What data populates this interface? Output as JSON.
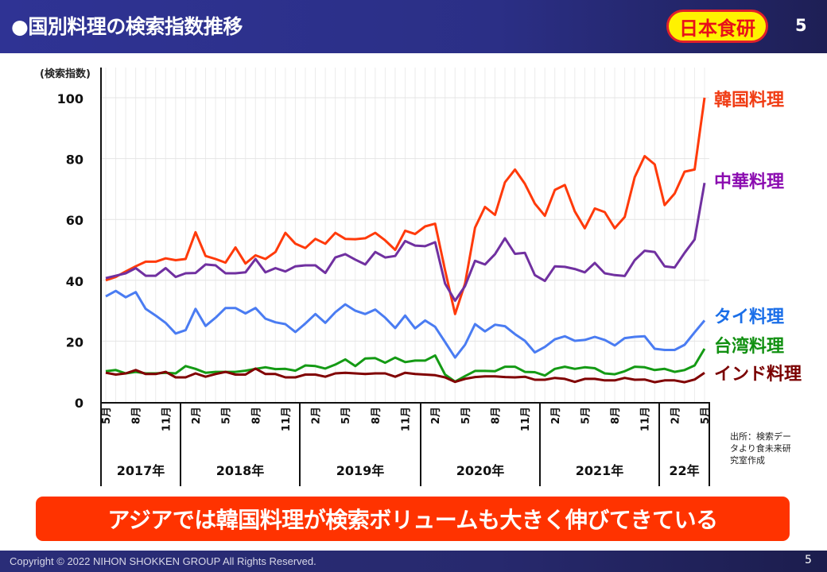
{
  "header": {
    "title": "●国別料理の検索指数推移",
    "logo_text": "日本食研",
    "page_number": "5"
  },
  "chart_data": {
    "type": "line",
    "ylabel": "(検索指数)",
    "ylim": [
      0,
      100
    ],
    "yticks": [
      "0",
      "20",
      "40",
      "60",
      "80",
      "100"
    ],
    "grid": true,
    "x_start": "2017-05",
    "x_end": "2022-05",
    "month_tick_labels": [
      "5月",
      "8月",
      "11月",
      "2月",
      "5月",
      "8月",
      "11月",
      "2月",
      "5月",
      "8月",
      "11月",
      "2月",
      "5月",
      "8月",
      "11月",
      "2月",
      "5月",
      "8月",
      "11月",
      "2月",
      "5月"
    ],
    "year_labels": [
      "2017年",
      "2018年",
      "2019年",
      "2020年",
      "2021年",
      "22年"
    ],
    "series": [
      {
        "name": "韓国料理",
        "color": "#ff3a0a",
        "label_color": "#f03c14",
        "values": [
          40.0,
          41.1,
          42.9,
          44.6,
          46.1,
          46.1,
          47.2,
          46.6,
          47.0,
          55.8,
          48.0,
          47.0,
          45.8,
          50.8,
          45.5,
          48.2,
          47.0,
          49.3,
          55.6,
          52.0,
          50.6,
          53.6,
          52.0,
          55.6,
          53.6,
          53.5,
          53.8,
          55.6,
          53.1,
          50.0,
          56.3,
          55.2,
          57.7,
          58.6,
          43.3,
          28.9,
          38.9,
          57.3,
          64.1,
          61.5,
          72.2,
          76.4,
          71.7,
          65.2,
          61.2,
          69.7,
          71.3,
          62.6,
          57.1,
          63.6,
          62.4,
          57.1,
          60.8,
          73.9,
          80.8,
          78.1,
          64.7,
          68.5,
          75.7,
          76.4,
          100
        ]
      },
      {
        "name": "中華料理",
        "color": "#7030a0",
        "label_color": "#8b0cb0",
        "values": [
          40.7,
          41.5,
          42.3,
          44.0,
          41.5,
          41.5,
          44.0,
          41.1,
          42.3,
          42.4,
          45.2,
          44.9,
          42.3,
          42.3,
          42.6,
          47.0,
          42.6,
          44.0,
          42.9,
          44.6,
          44.9,
          44.9,
          42.4,
          47.5,
          48.6,
          46.8,
          45.2,
          49.3,
          47.5,
          48.0,
          52.9,
          51.4,
          51.2,
          52.5,
          38.9,
          33.3,
          38.1,
          46.4,
          45.2,
          48.6,
          53.8,
          48.7,
          49.0,
          41.7,
          39.8,
          44.6,
          44.4,
          43.7,
          42.6,
          45.7,
          42.3,
          41.7,
          41.4,
          46.6,
          49.7,
          49.3,
          44.6,
          44.2,
          49.0,
          53.4,
          72.0
        ]
      },
      {
        "name": "タイ料理",
        "color": "#4a7cf2",
        "label_color": "#1a6ee8",
        "values": [
          34.7,
          36.5,
          34.4,
          36.1,
          30.6,
          28.4,
          26.0,
          22.5,
          23.6,
          30.6,
          25.0,
          27.7,
          30.9,
          30.9,
          29.1,
          30.9,
          27.4,
          26.2,
          25.6,
          23.0,
          25.8,
          28.9,
          26.0,
          29.5,
          32.1,
          30.0,
          28.9,
          30.4,
          27.7,
          24.3,
          28.4,
          24.2,
          26.8,
          24.7,
          19.7,
          14.6,
          18.8,
          25.6,
          23.2,
          25.4,
          24.9,
          22.3,
          20.1,
          16.3,
          18.1,
          20.6,
          21.6,
          20.1,
          20.4,
          21.4,
          20.4,
          18.6,
          21.0,
          21.4,
          21.6,
          17.5,
          17.1,
          17.1,
          18.8,
          22.9,
          26.8
        ]
      },
      {
        "name": "台湾料理",
        "color": "#149a14",
        "label_color": "#119011",
        "values": [
          10.1,
          10.5,
          9.4,
          9.9,
          9.4,
          9.4,
          9.6,
          9.4,
          11.8,
          10.9,
          9.6,
          9.9,
          9.9,
          9.9,
          10.3,
          10.9,
          11.4,
          10.8,
          10.9,
          10.3,
          12.0,
          11.8,
          11.0,
          12.3,
          14.0,
          11.8,
          14.3,
          14.4,
          12.9,
          14.6,
          13.1,
          13.6,
          13.6,
          15.3,
          9.0,
          6.7,
          8.5,
          10.2,
          10.2,
          10.1,
          11.6,
          11.6,
          9.9,
          9.8,
          8.7,
          10.9,
          11.6,
          10.9,
          11.4,
          11.1,
          9.4,
          9.1,
          10.1,
          11.6,
          11.4,
          10.5,
          10.9,
          9.9,
          10.5,
          12.0,
          17.5
        ]
      },
      {
        "name": "インド料理",
        "color": "#800000",
        "label_color": "#7a0000",
        "values": [
          9.6,
          9.0,
          9.4,
          10.5,
          9.2,
          9.2,
          9.9,
          8.1,
          8.1,
          9.4,
          8.3,
          9.2,
          9.9,
          9.0,
          9.0,
          11.0,
          9.2,
          9.2,
          8.1,
          8.1,
          9.0,
          9.0,
          8.3,
          9.4,
          9.6,
          9.4,
          9.2,
          9.4,
          9.4,
          8.3,
          9.6,
          9.2,
          9.0,
          8.8,
          8.1,
          6.6,
          7.6,
          8.2,
          8.4,
          8.4,
          8.2,
          8.1,
          8.3,
          7.3,
          7.3,
          7.9,
          7.6,
          6.6,
          7.6,
          7.6,
          7.1,
          7.1,
          7.9,
          7.3,
          7.4,
          6.5,
          7.1,
          7.1,
          6.5,
          7.4,
          9.6
        ]
      }
    ]
  },
  "source_note": [
    "出所：検索デー",
    "タより食未来研",
    "究室作成"
  ],
  "banner": {
    "text": "アジアでは韓国料理が検索ボリュームも大きく伸びてきている"
  },
  "footer": {
    "copyright": "Copyright © 2022 NIHON SHOKKEN GROUP All Rights Reserved.",
    "page_number": "5"
  }
}
